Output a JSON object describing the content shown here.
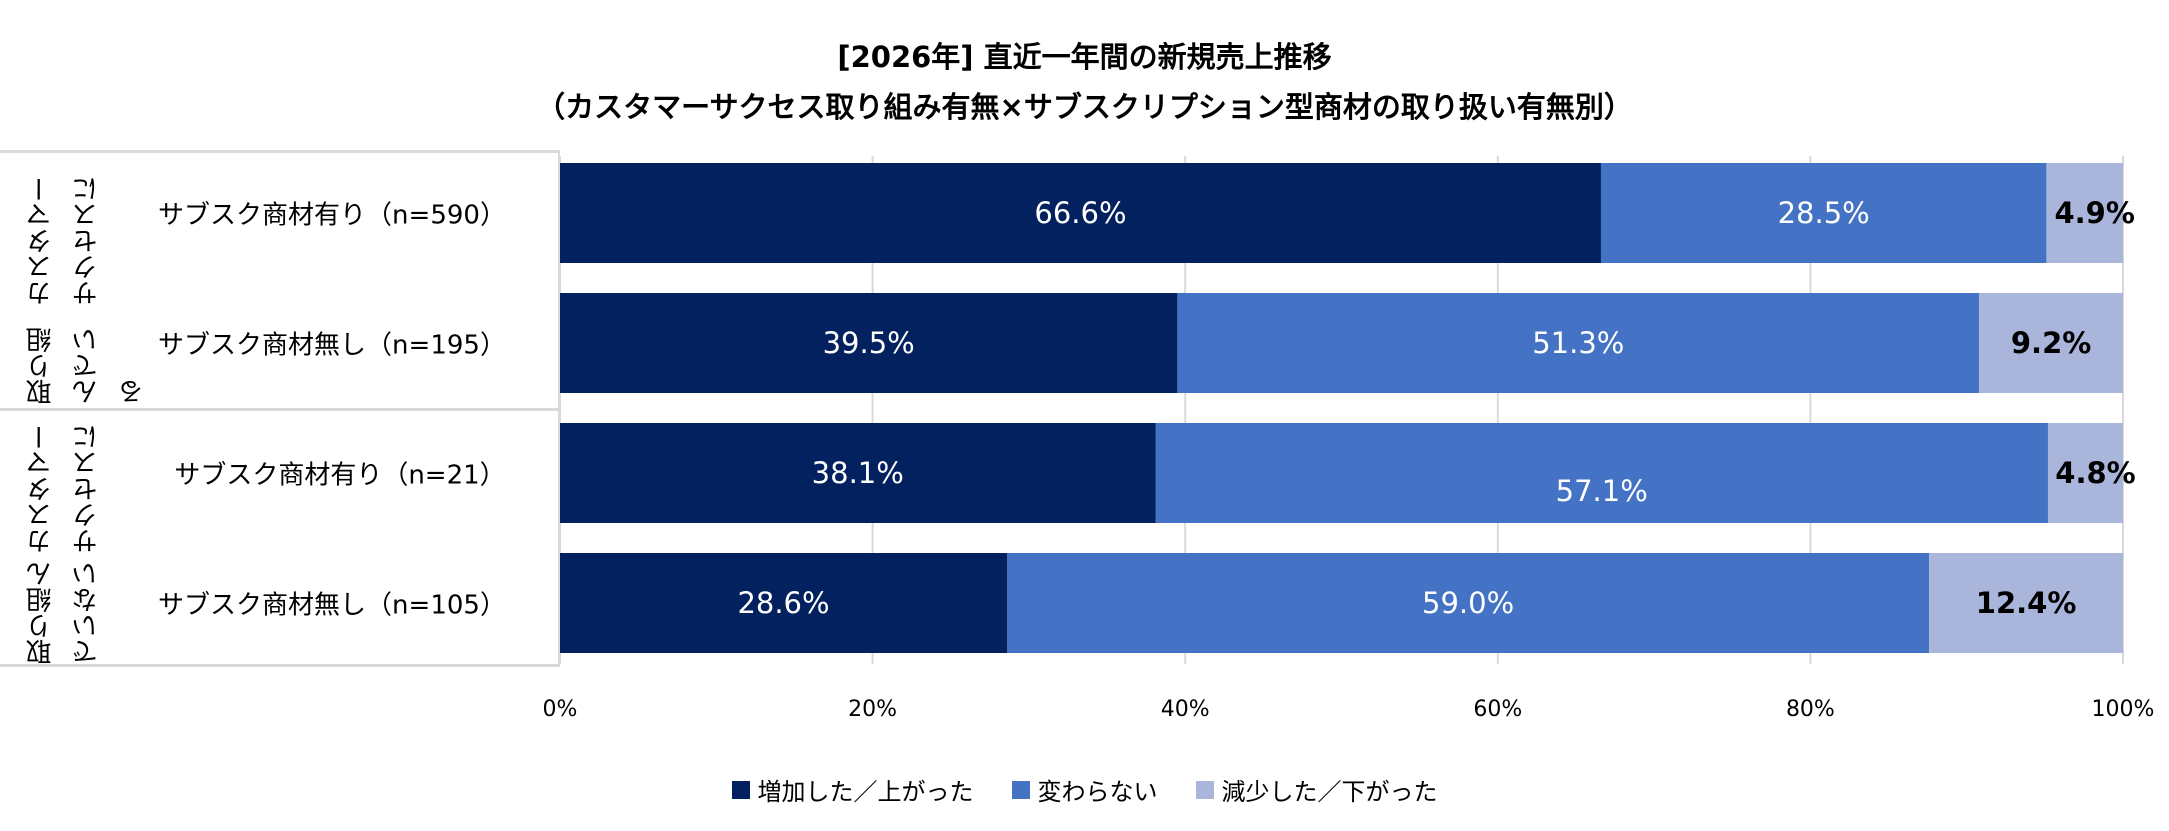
{
  "title": "[2026年] 直近一年間の新規売上推移",
  "subtitle": "（カスタマーサクセス取り組み有無×サブスクリプション型商材の取り扱い有無別）",
  "groups": [
    {
      "line1": "カスタマーサクセスに",
      "line2": "取り組んでいる"
    },
    {
      "line1": "カスタマーサクセスに",
      "line2": "取り組んでいない"
    }
  ],
  "chart_data": {
    "type": "bar",
    "orientation": "horizontal",
    "stacked": "100%",
    "categories": [
      "サブスク商材有り（n=590）",
      "サブスク商材無し（n=195）",
      "サブスク商材有り（n=21）",
      "サブスク商材無し（n=105）"
    ],
    "series": [
      {
        "name": "増加した／上がった",
        "color": "#03215e",
        "values": [
          66.6,
          39.5,
          38.1,
          28.6
        ],
        "labels": [
          "66.6%",
          "39.5%",
          "38.1%",
          "28.6%"
        ]
      },
      {
        "name": "変わらない",
        "color": "#4472c4",
        "values": [
          28.5,
          51.3,
          57.1,
          59.0
        ],
        "labels": [
          "28.5%",
          "51.3%",
          "57.1%",
          "59.0%"
        ]
      },
      {
        "name": "減少した／下がった",
        "color": "#a9b5da",
        "values": [
          4.9,
          9.2,
          4.8,
          12.4
        ],
        "labels": [
          "4.9%",
          "9.2%",
          "4.8%",
          "12.4%"
        ]
      }
    ],
    "xlim": [
      0,
      100
    ],
    "xticks": [
      "0%",
      "20%",
      "40%",
      "60%",
      "80%",
      "100%"
    ],
    "grid": true,
    "legend": "bottom"
  }
}
